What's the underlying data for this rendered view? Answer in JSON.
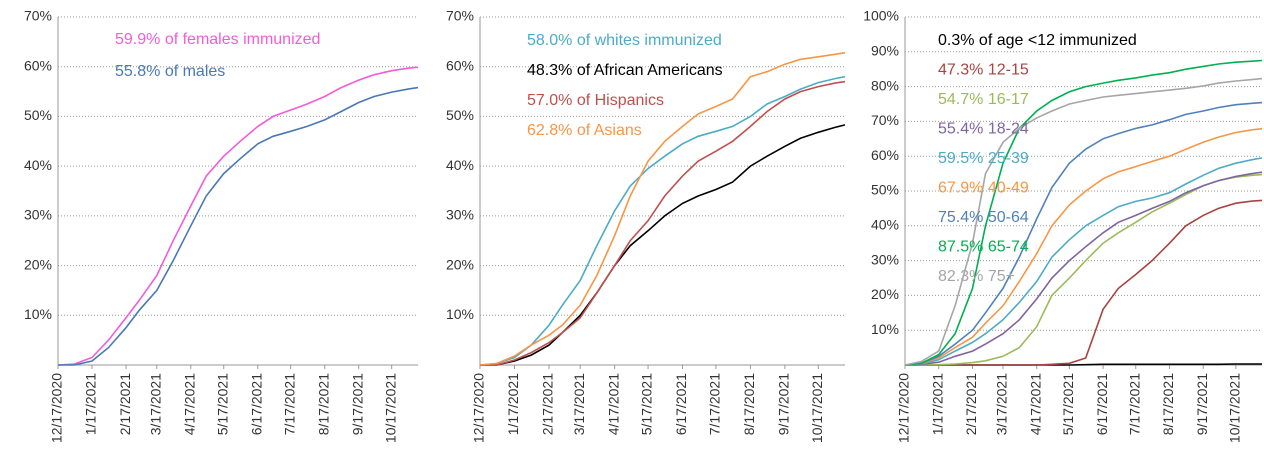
{
  "chart_data": [
    {
      "type": "line",
      "x": [
        "12/17/2020",
        "1/1/2021",
        "1/17/2021",
        "2/1/2021",
        "2/17/2021",
        "3/1/2021",
        "3/17/2021",
        "4/1/2021",
        "4/17/2021",
        "5/1/2021",
        "5/17/2021",
        "6/1/2021",
        "6/17/2021",
        "7/1/2021",
        "7/17/2021",
        "8/1/2021",
        "8/17/2021",
        "9/1/2021",
        "9/17/2021",
        "10/1/2021",
        "10/17/2021",
        "11/1/2021",
        "11/10/2021"
      ],
      "xlim": [
        "12/17/2020",
        "11/10/2021"
      ],
      "xticks": [
        "12/17/2020",
        "1/17/2021",
        "2/17/2021",
        "3/17/2021",
        "4/17/2021",
        "5/17/2021",
        "6/17/2021",
        "7/17/2021",
        "8/17/2021",
        "9/17/2021",
        "10/17/2021"
      ],
      "ylim": [
        0,
        70
      ],
      "yticks": [
        {
          "value": 10,
          "label": "10%"
        },
        {
          "value": 20,
          "label": "20%"
        },
        {
          "value": 30,
          "label": "30%"
        },
        {
          "value": 40,
          "label": "40%"
        },
        {
          "value": 50,
          "label": "50%"
        },
        {
          "value": 60,
          "label": "60%"
        },
        {
          "value": 70,
          "label": "70%"
        }
      ],
      "grid": true,
      "series": [
        {
          "name": "59.9% of females immunized",
          "color": "#f25cd8",
          "values": [
            0,
            0.2,
            1.5,
            5,
            9.5,
            13,
            18,
            25,
            32,
            38,
            42,
            45,
            48,
            50,
            51.3,
            52.5,
            54,
            55.8,
            57.3,
            58.4,
            59.2,
            59.7,
            59.9
          ]
        },
        {
          "name": "55.8% of males",
          "color": "#4a78b5",
          "values": [
            0,
            0,
            0.8,
            3.5,
            7.5,
            11,
            15,
            21,
            28,
            34,
            38.5,
            41.5,
            44.5,
            46,
            47,
            48,
            49.3,
            51,
            52.8,
            54,
            54.9,
            55.5,
            55.8
          ]
        }
      ]
    },
    {
      "type": "line",
      "x": [
        "12/17/2020",
        "1/1/2021",
        "1/17/2021",
        "2/1/2021",
        "2/17/2021",
        "3/1/2021",
        "3/17/2021",
        "4/1/2021",
        "4/17/2021",
        "5/1/2021",
        "5/17/2021",
        "6/1/2021",
        "6/17/2021",
        "7/1/2021",
        "7/17/2021",
        "8/1/2021",
        "8/17/2021",
        "9/1/2021",
        "9/17/2021",
        "10/1/2021",
        "10/17/2021",
        "11/1/2021",
        "11/10/2021"
      ],
      "xlim": [
        "12/17/2020",
        "11/10/2021"
      ],
      "xticks": [
        "12/17/2020",
        "1/17/2021",
        "2/17/2021",
        "3/17/2021",
        "4/17/2021",
        "5/17/2021",
        "6/17/2021",
        "7/17/2021",
        "8/17/2021",
        "9/17/2021",
        "10/17/2021"
      ],
      "ylim": [
        0,
        70
      ],
      "yticks": [
        {
          "value": 10,
          "label": "10%"
        },
        {
          "value": 20,
          "label": "20%"
        },
        {
          "value": 30,
          "label": "30%"
        },
        {
          "value": 40,
          "label": "40%"
        },
        {
          "value": 50,
          "label": "50%"
        },
        {
          "value": 60,
          "label": "60%"
        },
        {
          "value": 70,
          "label": "70%"
        }
      ],
      "grid": true,
      "series": [
        {
          "name": "58.0% of whites immunized",
          "color": "#4bacc6",
          "values": [
            0,
            0.3,
            1.5,
            4,
            8,
            12,
            17,
            24,
            31,
            36,
            39.5,
            42,
            44.5,
            46,
            47,
            48,
            50,
            52.5,
            54,
            55.5,
            56.8,
            57.6,
            58.0
          ]
        },
        {
          "name": "48.3% of African Americans",
          "color": "#000000",
          "values": [
            0,
            0,
            0.8,
            2,
            4,
            6.5,
            10,
            14.5,
            20,
            24,
            27,
            30,
            32.5,
            34,
            35.3,
            36.8,
            40,
            42,
            44,
            45.6,
            46.8,
            47.8,
            48.3
          ]
        },
        {
          "name": "57.0% of Hispanics",
          "color": "#c0504d",
          "values": [
            0,
            0,
            1,
            2.5,
            4.5,
            6.5,
            9.5,
            14.5,
            20,
            25,
            29,
            34,
            38,
            41,
            43,
            45,
            48,
            51,
            53.5,
            55,
            56,
            56.7,
            57.0
          ]
        },
        {
          "name": "62.8% of Asians",
          "color": "#f79646",
          "values": [
            0,
            0.3,
            1.8,
            4,
            6,
            8,
            12,
            18,
            26,
            34,
            41,
            45,
            48,
            50.5,
            52,
            53.5,
            58,
            59,
            60.5,
            61.5,
            62,
            62.5,
            62.8
          ]
        }
      ]
    },
    {
      "type": "line",
      "x": [
        "12/17/2020",
        "1/1/2021",
        "1/17/2021",
        "2/1/2021",
        "2/17/2021",
        "3/1/2021",
        "3/17/2021",
        "4/1/2021",
        "4/17/2021",
        "5/1/2021",
        "5/17/2021",
        "6/1/2021",
        "6/17/2021",
        "7/1/2021",
        "7/17/2021",
        "8/1/2021",
        "8/17/2021",
        "9/1/2021",
        "9/17/2021",
        "10/1/2021",
        "10/17/2021",
        "11/1/2021",
        "11/10/2021"
      ],
      "xlim": [
        "12/17/2020",
        "11/10/2021"
      ],
      "xticks": [
        "12/17/2020",
        "1/17/2021",
        "2/17/2021",
        "3/17/2021",
        "4/17/2021",
        "5/17/2021",
        "6/17/2021",
        "7/17/2021",
        "8/17/2021",
        "9/17/2021",
        "10/17/2021"
      ],
      "ylim": [
        0,
        100
      ],
      "yticks": [
        {
          "value": 10,
          "label": "10%"
        },
        {
          "value": 20,
          "label": "20%"
        },
        {
          "value": 30,
          "label": "30%"
        },
        {
          "value": 40,
          "label": "40%"
        },
        {
          "value": 50,
          "label": "50%"
        },
        {
          "value": 60,
          "label": "60%"
        },
        {
          "value": 70,
          "label": "70%"
        },
        {
          "value": 80,
          "label": "80%"
        },
        {
          "value": 90,
          "label": "90%"
        },
        {
          "value": 100,
          "label": "100%"
        }
      ],
      "grid": true,
      "series": [
        {
          "name": "0.3% of age <12 immunized",
          "color": "#000000",
          "values": [
            0,
            0,
            0,
            0,
            0,
            0,
            0,
            0,
            0,
            0,
            0,
            0.1,
            0.2,
            0.2,
            0.2,
            0.2,
            0.2,
            0.2,
            0.2,
            0.2,
            0.3,
            0.3,
            0.3
          ]
        },
        {
          "name": "47.3% 12-15",
          "color": "#a94442",
          "values": [
            0,
            0,
            0,
            0,
            0,
            0,
            0,
            0,
            0,
            0.2,
            0.5,
            2,
            16,
            22,
            26,
            30,
            35,
            40,
            43,
            45,
            46.5,
            47.1,
            47.3
          ]
        },
        {
          "name": "54.7% 16-17",
          "color": "#9bbb59",
          "values": [
            0,
            0,
            0.1,
            0.3,
            0.7,
            1.2,
            2.5,
            5,
            11,
            20,
            25,
            30,
            35,
            38,
            41,
            44,
            46.5,
            49,
            51.5,
            53,
            54,
            54.5,
            54.7
          ]
        },
        {
          "name": "55.4% 18-24",
          "color": "#8064a2",
          "values": [
            0,
            0.2,
            0.8,
            2.5,
            4,
            6,
            9,
            13,
            19,
            25,
            30,
            34,
            38,
            41,
            43,
            45,
            47,
            49.5,
            51.5,
            53,
            54.2,
            55,
            55.4
          ]
        },
        {
          "name": "59.5% 25-39",
          "color": "#4bacc6",
          "values": [
            0,
            0.3,
            1.5,
            4,
            6.5,
            9,
            13,
            18,
            24,
            31,
            36,
            40,
            43,
            45.5,
            47,
            48,
            49.5,
            52,
            54.5,
            56.5,
            58,
            59,
            59.5
          ]
        },
        {
          "name": "67.9% 40-49",
          "color": "#f79646",
          "values": [
            0,
            0.4,
            2,
            5,
            8,
            12,
            17,
            24,
            32,
            40,
            46,
            50,
            53.5,
            55.5,
            57,
            58.5,
            60,
            62,
            64,
            65.5,
            66.8,
            67.6,
            67.9
          ]
        },
        {
          "name": "75.4% 50-64",
          "color": "#4f81bd",
          "values": [
            0,
            0.5,
            2.5,
            6,
            10,
            15,
            22,
            31,
            42,
            51,
            58,
            62,
            65,
            66.5,
            68,
            69,
            70.5,
            72,
            73,
            74,
            74.8,
            75.2,
            75.4
          ]
        },
        {
          "name": "87.5% 65-74",
          "color": "#00b050",
          "values": [
            0,
            0.5,
            3,
            9,
            22,
            40,
            58,
            68,
            73,
            76,
            78.5,
            80,
            81,
            81.8,
            82.5,
            83.3,
            84,
            85,
            85.8,
            86.5,
            87,
            87.3,
            87.5
          ]
        },
        {
          "name": "82.3% 75+",
          "color": "#a6a6a6",
          "values": [
            0,
            1,
            4,
            17,
            35,
            55,
            64,
            68,
            71,
            73,
            75,
            76,
            77,
            77.5,
            78,
            78.5,
            79,
            79.5,
            80.2,
            81,
            81.6,
            82,
            82.3
          ]
        }
      ]
    }
  ]
}
